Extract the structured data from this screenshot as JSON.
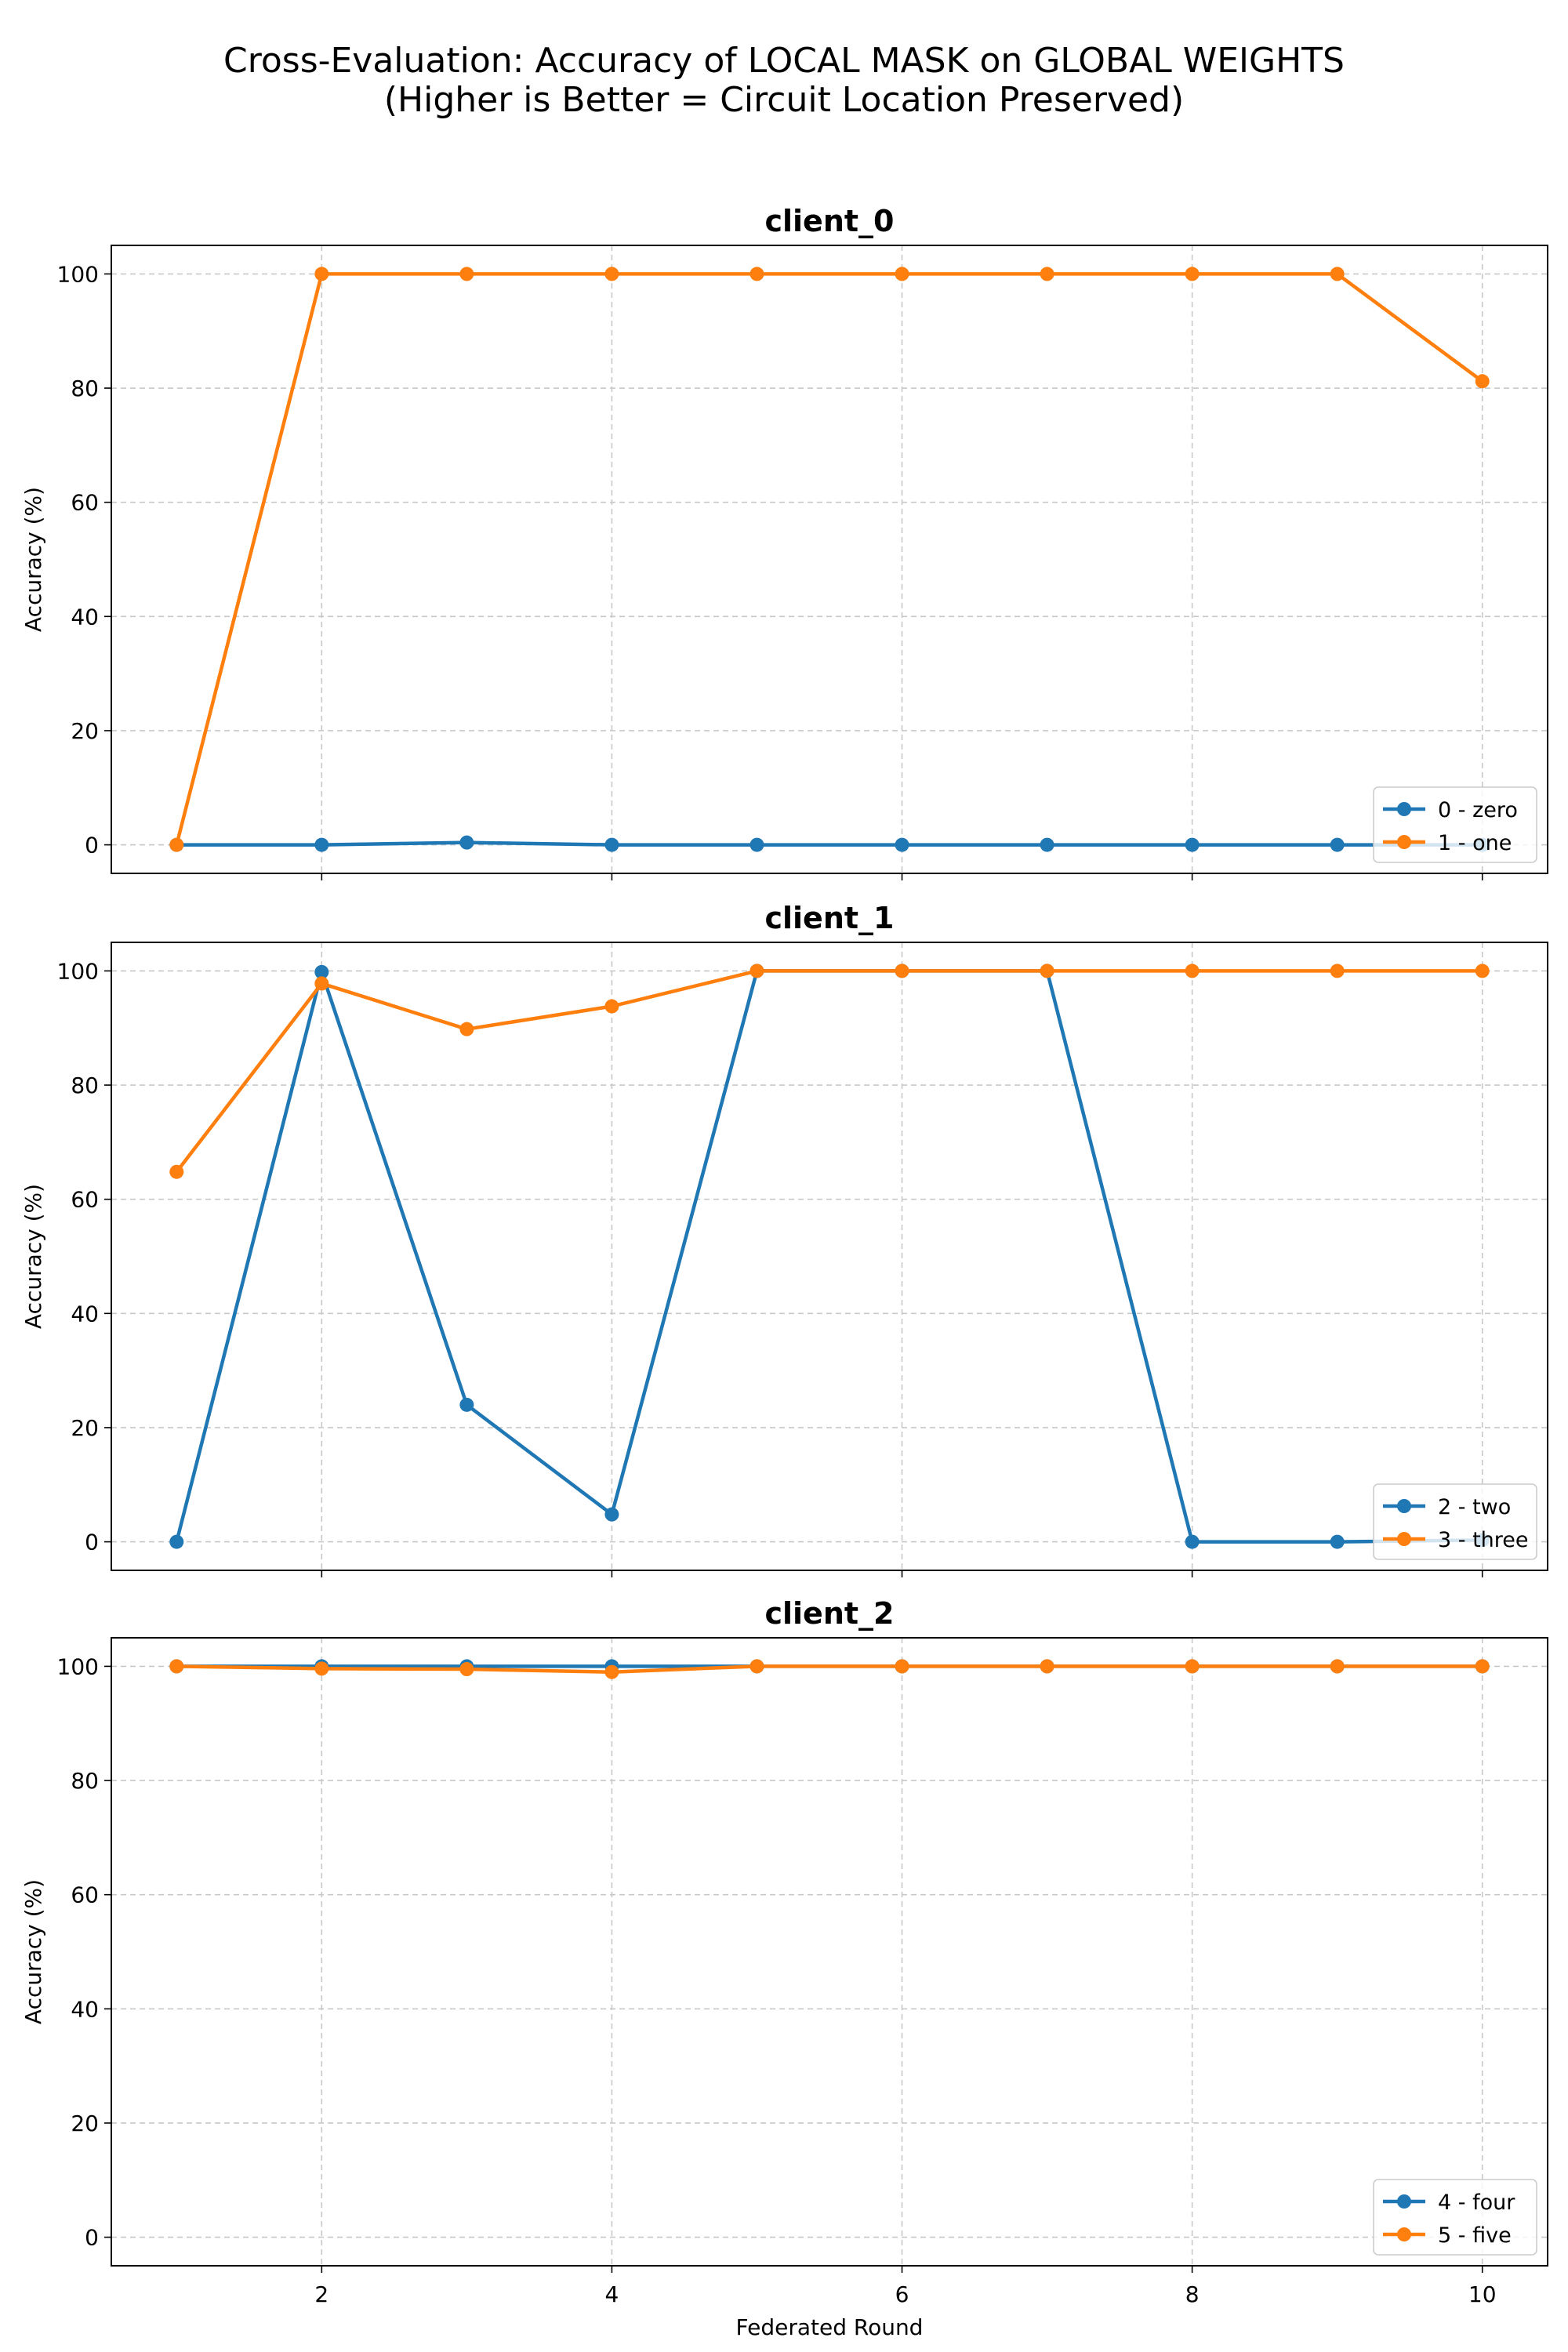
{
  "figure": {
    "title_line1": "Cross-Evaluation: Accuracy of LOCAL MASK on GLOBAL WEIGHTS",
    "title_line2": "(Higher is Better = Circuit Location Preserved)"
  },
  "chart_data": [
    {
      "type": "line",
      "title": "client_0",
      "xlabel": "",
      "ylabel": "Accuracy (%)",
      "x": [
        1,
        2,
        3,
        4,
        5,
        6,
        7,
        8,
        9,
        10
      ],
      "xlim": [
        0.55,
        10.45
      ],
      "ylim": [
        -5,
        105
      ],
      "xticks": [
        2,
        4,
        6,
        8,
        10
      ],
      "yticks": [
        0,
        20,
        40,
        60,
        80,
        100
      ],
      "grid": true,
      "legend_position": "lower-right",
      "series": [
        {
          "name": "0 - zero",
          "color": "#1f77b4",
          "values": [
            0,
            0,
            0.4,
            0,
            0,
            0,
            0,
            0,
            0,
            0
          ]
        },
        {
          "name": "1 - one",
          "color": "#ff7f0e",
          "values": [
            0,
            100,
            100,
            100,
            100,
            100,
            100,
            100,
            100,
            81.2
          ]
        }
      ]
    },
    {
      "type": "line",
      "title": "client_1",
      "xlabel": "",
      "ylabel": "Accuracy (%)",
      "x": [
        1,
        2,
        3,
        4,
        5,
        6,
        7,
        8,
        9,
        10
      ],
      "xlim": [
        0.55,
        10.45
      ],
      "ylim": [
        -5,
        105
      ],
      "xticks": [
        2,
        4,
        6,
        8,
        10
      ],
      "yticks": [
        0,
        20,
        40,
        60,
        80,
        100
      ],
      "grid": true,
      "legend_position": "lower-right",
      "series": [
        {
          "name": "2 - two",
          "color": "#1f77b4",
          "values": [
            0,
            99.8,
            24,
            4.8,
            100,
            100,
            100,
            0,
            0,
            0.3
          ]
        },
        {
          "name": "3 - three",
          "color": "#ff7f0e",
          "values": [
            64.8,
            97.8,
            89.8,
            93.8,
            100,
            100,
            100,
            100,
            100,
            100
          ]
        }
      ]
    },
    {
      "type": "line",
      "title": "client_2",
      "xlabel": "Federated Round",
      "ylabel": "Accuracy (%)",
      "x": [
        1,
        2,
        3,
        4,
        5,
        6,
        7,
        8,
        9,
        10
      ],
      "xlim": [
        0.55,
        10.45
      ],
      "ylim": [
        -5,
        105
      ],
      "xticks": [
        2,
        4,
        6,
        8,
        10
      ],
      "yticks": [
        0,
        20,
        40,
        60,
        80,
        100
      ],
      "grid": true,
      "legend_position": "lower-right",
      "series": [
        {
          "name": "4 - four",
          "color": "#1f77b4",
          "values": [
            100,
            100,
            100,
            100,
            100,
            100,
            100,
            100,
            100,
            100
          ]
        },
        {
          "name": "5 - five",
          "color": "#ff7f0e",
          "values": [
            100,
            99.6,
            99.5,
            99.0,
            100,
            100,
            100,
            100,
            100,
            100
          ]
        }
      ]
    }
  ]
}
